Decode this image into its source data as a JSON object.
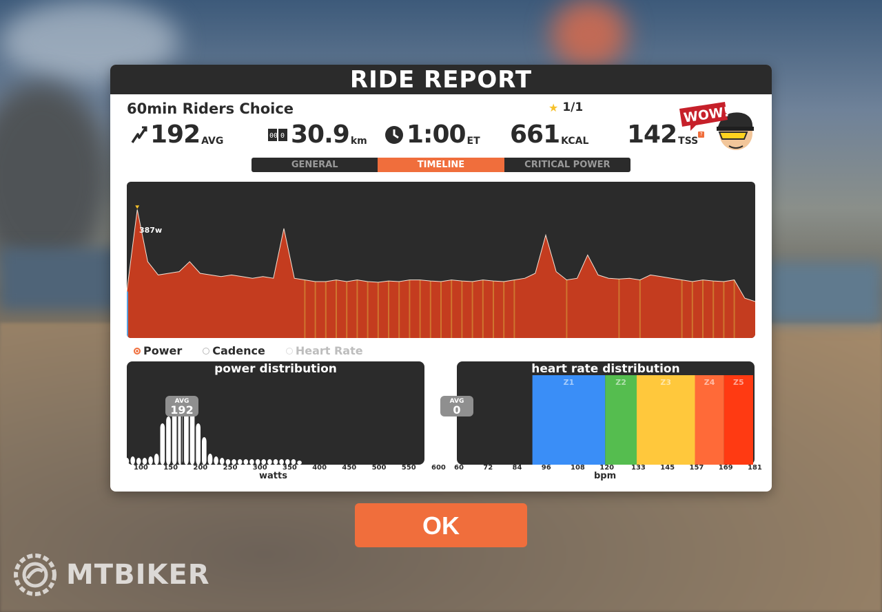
{
  "window": {
    "title": "RIDE REPORT"
  },
  "workout": {
    "name": "60min Riders Choice",
    "rating": "1/1"
  },
  "stats": [
    {
      "icon": "power-icon",
      "value": "192",
      "unit": "AVG"
    },
    {
      "icon": "distance-icon",
      "value": "30.9",
      "unit": "km"
    },
    {
      "icon": "clock-icon",
      "value": "1:00",
      "unit": "ET"
    },
    {
      "icon": "calories-icon",
      "value": "661",
      "unit": "KCAL"
    },
    {
      "icon": "tss-icon",
      "value": "142",
      "unit": "TSS"
    }
  ],
  "badge": {
    "text": "WOW!"
  },
  "tabs": [
    {
      "label": "GENERAL",
      "active": false
    },
    {
      "label": "TIMELINE",
      "active": true
    },
    {
      "label": "CRITICAL POWER",
      "active": false
    }
  ],
  "timeline": {
    "peak_label": "387w"
  },
  "legend": [
    {
      "label": "Power",
      "selected": true
    },
    {
      "label": "Cadence",
      "selected": false
    },
    {
      "label": "Heart Rate",
      "selected": false
    }
  ],
  "power_distribution": {
    "title": "power distribution",
    "avg_label": "AVG",
    "avg_value": "192",
    "x_ticks": [
      "100",
      "150",
      "200",
      "250",
      "300",
      "350",
      "400",
      "450",
      "500",
      "550",
      "600"
    ],
    "x_label": "watts"
  },
  "heart_rate_distribution": {
    "title": "heart rate distribution",
    "avg_label": "AVG",
    "avg_value": "0",
    "zones": [
      {
        "label": "Z1",
        "color": "#3a8ef7"
      },
      {
        "label": "Z2",
        "color": "#55bd4f"
      },
      {
        "label": "Z3",
        "color": "#ffc83c"
      },
      {
        "label": "Z4",
        "color": "#ff6a38"
      },
      {
        "label": "Z5",
        "color": "#ff3a12"
      }
    ],
    "x_ticks": [
      "60",
      "72",
      "84",
      "96",
      "108",
      "120",
      "133",
      "145",
      "157",
      "169",
      "181"
    ],
    "x_label": "bpm"
  },
  "ok_button": {
    "label": "OK"
  },
  "brand": {
    "text": "MTBIKER"
  },
  "chart_data": [
    {
      "type": "area",
      "title": "",
      "series": [
        {
          "name": "Power",
          "x": [
            0,
            1,
            2,
            3,
            4,
            5,
            6,
            7,
            8,
            9,
            10,
            11,
            12,
            13,
            14,
            15,
            16,
            17,
            18,
            19,
            20,
            21,
            22,
            23,
            24,
            25,
            26,
            27,
            28,
            29,
            30,
            31,
            32,
            33,
            34,
            35,
            36,
            37,
            38,
            39,
            40,
            41,
            42,
            43,
            44,
            45,
            46,
            47,
            48,
            49,
            50,
            51,
            52,
            53,
            54,
            55,
            56,
            57,
            58,
            59,
            60
          ],
          "values": [
            140,
            387,
            230,
            190,
            195,
            200,
            230,
            195,
            190,
            185,
            190,
            185,
            180,
            185,
            180,
            330,
            180,
            175,
            170,
            170,
            175,
            170,
            175,
            170,
            168,
            172,
            170,
            175,
            175,
            172,
            170,
            175,
            172,
            170,
            175,
            172,
            170,
            175,
            180,
            195,
            310,
            200,
            175,
            180,
            250,
            190,
            180,
            178,
            180,
            175,
            190,
            185,
            180,
            175,
            170,
            175,
            172,
            170,
            175,
            120,
            110
          ]
        }
      ]
    },
    {
      "type": "bar",
      "title": "power distribution",
      "xlabel": "watts",
      "categories": [
        "100",
        "110",
        "120",
        "130",
        "140",
        "150",
        "160",
        "170",
        "180",
        "190",
        "200",
        "210",
        "220",
        "230",
        "240",
        "250",
        "260",
        "270",
        "280",
        "290",
        "300",
        "310",
        "320",
        "330",
        "340",
        "350",
        "360",
        "370",
        "380",
        "390",
        "400"
      ],
      "values": [
        5,
        6,
        5,
        5,
        6,
        8,
        30,
        35,
        38,
        40,
        40,
        38,
        30,
        20,
        8,
        6,
        5,
        4,
        4,
        4,
        4,
        4,
        4,
        4,
        4,
        4,
        4,
        4,
        4,
        3,
        0
      ],
      "xlim": [
        100,
        600
      ]
    },
    {
      "type": "bar",
      "title": "heart rate distribution",
      "xlabel": "bpm",
      "categories": [
        "Z1",
        "Z2",
        "Z3",
        "Z4",
        "Z5"
      ],
      "values": [
        100,
        100,
        100,
        100,
        100
      ],
      "xlim": [
        60,
        181
      ]
    }
  ]
}
